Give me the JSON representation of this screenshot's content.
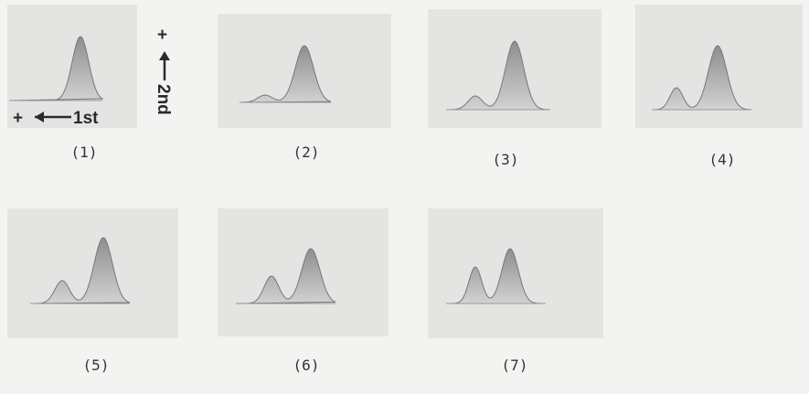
{
  "panels": [
    {
      "label": "(1)"
    },
    {
      "label": "(2)"
    },
    {
      "label": "(3)"
    },
    {
      "label": "(4)"
    },
    {
      "label": "(5)"
    },
    {
      "label": "(6)"
    },
    {
      "label": "(7)"
    }
  ],
  "annotations": {
    "first_direction": {
      "sign": "+",
      "label": "1st"
    },
    "second_direction": {
      "sign": "+",
      "label": "2nd"
    }
  }
}
